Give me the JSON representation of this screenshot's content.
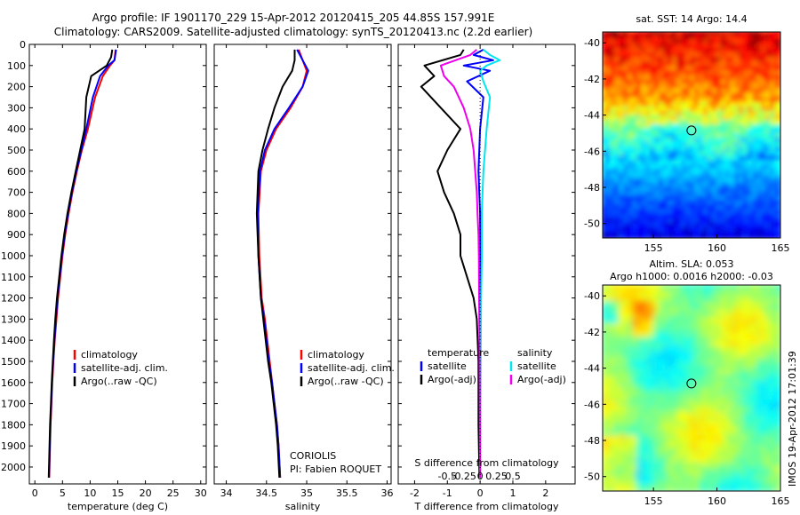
{
  "header": {
    "line1": "Argo profile: IF 1901170_229 15-Apr-2012 20120415_205 44.85S 157.991E",
    "line2": "Climatology: CARS2009. Satellite-adjusted climatology: synTS_20120413.nc (2.2d earlier)"
  },
  "side_stamp": "IMOS 19-Apr-2012 17:01:39",
  "colors": {
    "climatology": "#ff0000",
    "satellite": "#0000ff",
    "argo": "#000000",
    "salinity_satellite": "#00e5ee",
    "salinity_argo": "#ee00ee"
  },
  "credits": {
    "line1": "CORIOLIS",
    "line2": "PI: Fabien ROQUET"
  },
  "chart_data": [
    {
      "id": "temperature",
      "type": "line",
      "xlabel": "temperature (deg C)",
      "ylabel": "",
      "xlim": [
        -1,
        31
      ],
      "ylim": [
        2080,
        0
      ],
      "xticks": [
        0,
        5,
        10,
        15,
        20,
        25,
        30
      ],
      "xtick_labels": [
        "0",
        "5",
        "10",
        "15",
        "20",
        "25",
        "30"
      ],
      "yticks": [
        0,
        100,
        200,
        300,
        400,
        500,
        600,
        700,
        800,
        900,
        1000,
        1100,
        1200,
        1300,
        1400,
        1500,
        1600,
        1700,
        1800,
        1900,
        2000
      ],
      "ytick_labels": [
        "0",
        "100",
        "200",
        "300",
        "400",
        "500",
        "600",
        "700",
        "800",
        "900",
        "1000",
        "1100",
        "1200",
        "1300",
        "1400",
        "1500",
        "1600",
        "1700",
        "1800",
        "1900",
        "2000"
      ],
      "legend": [
        "climatology",
        "satellite-adj. clim.",
        "Argo(..raw -QC)"
      ],
      "legend_position": "lower-middle",
      "series": [
        {
          "name": "climatology",
          "color": "#ff0000",
          "x": [
            14.6,
            14.4,
            13.6,
            12.3,
            10.9,
            9.6,
            8.5,
            7.6,
            6.8,
            6.1,
            5.5,
            5.0,
            4.6,
            4.2,
            3.9,
            3.6,
            3.35,
            3.15,
            3.0,
            2.85,
            2.75,
            2.65,
            2.6
          ],
          "y": [
            25,
            75,
            100,
            150,
            250,
            400,
            500,
            600,
            700,
            800,
            900,
            1000,
            1100,
            1200,
            1300,
            1400,
            1500,
            1600,
            1700,
            1800,
            1900,
            2000,
            2050
          ]
        },
        {
          "name": "satellite-adj. clim.",
          "color": "#0000ff",
          "x": [
            14.7,
            14.4,
            13.3,
            11.8,
            10.5,
            9.3,
            8.4,
            7.5,
            6.7,
            6.0,
            5.4,
            4.9,
            4.5,
            4.1,
            3.8,
            3.55,
            3.3,
            3.1,
            2.95,
            2.8,
            2.7,
            2.6,
            2.55
          ],
          "y": [
            25,
            75,
            100,
            150,
            250,
            400,
            500,
            600,
            700,
            800,
            900,
            1000,
            1100,
            1200,
            1300,
            1400,
            1500,
            1600,
            1700,
            1800,
            1900,
            2000,
            2050
          ]
        },
        {
          "name": "Argo(..raw -QC)",
          "color": "#000000",
          "x": [
            14.0,
            13.8,
            13.0,
            10.2,
            9.3,
            9.0,
            8.2,
            7.4,
            6.6,
            5.9,
            5.3,
            4.8,
            4.4,
            4.0,
            3.7,
            3.45,
            3.25,
            3.05,
            2.9,
            2.75,
            2.65,
            2.55,
            2.5
          ],
          "y": [
            25,
            60,
            100,
            150,
            250,
            400,
            500,
            600,
            700,
            800,
            900,
            1000,
            1100,
            1200,
            1300,
            1400,
            1500,
            1600,
            1700,
            1800,
            1900,
            2000,
            2050
          ]
        }
      ]
    },
    {
      "id": "salinity",
      "type": "line",
      "xlabel": "salinity",
      "ylabel": "",
      "xlim": [
        33.85,
        36.05
      ],
      "ylim": [
        2080,
        0
      ],
      "xticks": [
        34,
        34.5,
        35,
        35.5,
        36
      ],
      "xtick_labels": [
        "34",
        "34.5",
        "35",
        "35.5",
        "36"
      ],
      "legend": [
        "climatology",
        "satellite-adj. clim.",
        "Argo(..raw -QC)"
      ],
      "legend_position": "lower-right",
      "series": [
        {
          "name": "climatology",
          "color": "#ff0000",
          "x": [
            34.9,
            34.95,
            35.0,
            34.95,
            34.8,
            34.62,
            34.5,
            34.43,
            34.4,
            34.41,
            34.44,
            34.48,
            34.51,
            34.54,
            34.57,
            34.6,
            34.63,
            34.65,
            34.67
          ],
          "y": [
            25,
            75,
            125,
            200,
            300,
            400,
            500,
            600,
            800,
            1000,
            1200,
            1300,
            1400,
            1500,
            1600,
            1700,
            1800,
            1900,
            2050
          ]
        },
        {
          "name": "satellite-adj. clim.",
          "color": "#0000ff",
          "x": [
            34.88,
            34.95,
            35.02,
            34.95,
            34.78,
            34.6,
            34.48,
            34.42,
            34.39,
            34.4,
            34.43,
            34.47,
            34.5,
            34.53,
            34.57,
            34.6,
            34.63,
            34.65,
            34.67
          ],
          "y": [
            25,
            75,
            125,
            200,
            300,
            400,
            500,
            600,
            800,
            1000,
            1200,
            1300,
            1400,
            1500,
            1600,
            1700,
            1800,
            1900,
            2050
          ]
        },
        {
          "name": "Argo(..raw -QC)",
          "color": "#000000",
          "x": [
            34.85,
            34.85,
            34.82,
            34.7,
            34.6,
            34.52,
            34.45,
            34.4,
            34.38,
            34.4,
            34.43,
            34.46,
            34.49,
            34.52,
            34.56,
            34.59,
            34.62,
            34.64,
            34.66
          ],
          "y": [
            25,
            75,
            125,
            200,
            300,
            400,
            500,
            600,
            800,
            1000,
            1200,
            1300,
            1400,
            1500,
            1600,
            1700,
            1800,
            1900,
            2050
          ]
        }
      ]
    },
    {
      "id": "differences",
      "type": "line",
      "xlabel": "T difference from climatology",
      "xlabel_top": "S difference from climatology",
      "xlim": [
        -2.5,
        2.9
      ],
      "ylim": [
        2080,
        0
      ],
      "xticks": [
        -2,
        -1,
        0,
        1,
        2
      ],
      "xtick_labels": [
        "-2",
        "-1",
        "0",
        "1",
        "2"
      ],
      "s_axis_ticks": [
        -0.5,
        -0.25,
        0,
        0.25,
        0.5
      ],
      "s_axis_labels": [
        "-0.5",
        "-0.25",
        "0",
        "0.25",
        "0.5"
      ],
      "s_axis_scale": 2,
      "legend_temperature": {
        "title": "temperature",
        "items": [
          "satellite",
          "Argo(-adj)"
        ]
      },
      "legend_salinity": {
        "title": "salinity",
        "items": [
          "satellite",
          "Argo(-adj)"
        ]
      },
      "series": [
        {
          "name": "satellite",
          "group": "temperature",
          "color": "#0000ff",
          "x": [
            0.1,
            -0.2,
            0.4,
            -0.5,
            0.3,
            -0.4,
            0.1,
            0.0,
            -0.05,
            0.0,
            0.0,
            0.0,
            0.0,
            0.0,
            0.0,
            0.0
          ],
          "y": [
            25,
            50,
            75,
            100,
            125,
            175,
            250,
            400,
            600,
            800,
            1000,
            1200,
            1400,
            1600,
            1800,
            2050
          ]
        },
        {
          "name": "Argo(-adj)",
          "group": "temperature",
          "color": "#000000",
          "x": [
            -0.5,
            -0.6,
            -1.7,
            -1.4,
            -1.8,
            -1.2,
            -0.6,
            -1.0,
            -1.3,
            -1.1,
            -0.8,
            -0.6,
            -0.6,
            -0.4,
            -0.2,
            -0.1,
            -0.05,
            -0.05,
            -0.02
          ],
          "y": [
            25,
            50,
            100,
            150,
            200,
            300,
            400,
            500,
            600,
            700,
            800,
            900,
            1000,
            1100,
            1200,
            1300,
            1500,
            1800,
            2050
          ]
        },
        {
          "name": "satellite",
          "group": "salinity",
          "color": "#00e5ee",
          "x": [
            0.1,
            0.3,
            0.6,
            0.2,
            0.0,
            0.1,
            0.3,
            0.2,
            0.1,
            0.05,
            0.05,
            0.03,
            0.02,
            0.01,
            0.0
          ],
          "y": [
            25,
            50,
            75,
            100,
            125,
            175,
            250,
            400,
            600,
            800,
            1000,
            1200,
            1400,
            1700,
            2050
          ]
        },
        {
          "name": "Argo(-adj)",
          "group": "salinity",
          "color": "#ee00ee",
          "x": [
            -0.1,
            -0.3,
            -1.2,
            -1.1,
            -0.8,
            -0.5,
            -0.3,
            -0.2,
            -0.15,
            -0.1,
            -0.08,
            -0.05,
            -0.04,
            -0.03,
            -0.02,
            -0.01,
            0.0
          ],
          "y": [
            25,
            50,
            100,
            150,
            200,
            300,
            400,
            500,
            600,
            700,
            800,
            900,
            1000,
            1200,
            1400,
            1700,
            2050
          ]
        }
      ]
    },
    {
      "id": "sst_map",
      "type": "heatmap",
      "title": "sat. SST: 14  Argo: 14.4",
      "xlim": [
        151,
        165
      ],
      "ylim": [
        -50.8,
        -39.4
      ],
      "xticks": [
        155,
        160,
        165
      ],
      "xtick_labels": [
        "155",
        "160",
        "165"
      ],
      "yticks": [
        -40,
        -42,
        -44,
        -46,
        -48,
        -50
      ],
      "ytick_labels": [
        "-40",
        "-42",
        "-44",
        "-46",
        "-48",
        "-50"
      ],
      "marker": {
        "lon": 157.991,
        "lat": -44.85
      }
    },
    {
      "id": "sla_map",
      "type": "heatmap",
      "title_line1": "Altim. SLA: 0.053",
      "title_line2": "Argo h1000: 0.0016 h2000: -0.03",
      "xlim": [
        151,
        165
      ],
      "ylim": [
        -50.8,
        -39.4
      ],
      "xticks": [
        155,
        160,
        165
      ],
      "xtick_labels": [
        "155",
        "160",
        "165"
      ],
      "yticks": [
        -40,
        -42,
        -44,
        -46,
        -48,
        -50
      ],
      "ytick_labels": [
        "-40",
        "-42",
        "-44",
        "-46",
        "-48",
        "-50"
      ],
      "marker": {
        "lon": 157.991,
        "lat": -44.85
      }
    }
  ]
}
